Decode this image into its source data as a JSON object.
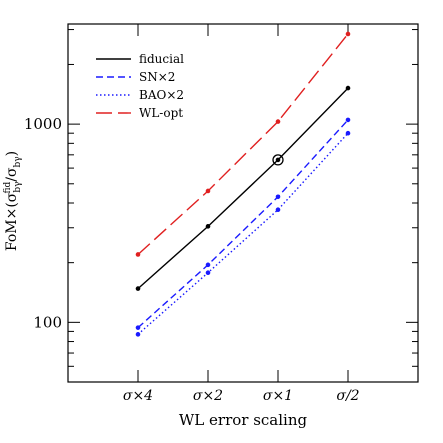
{
  "chart_data": {
    "type": "line",
    "title": "",
    "xlabel": "WL error scaling",
    "ylabel": "FoM×(σ_bγ^fid/σ_bγ)",
    "ylabel_parts": {
      "prefix": "FoM×(σ",
      "sub1": "bγ",
      "sup": "fid",
      "mid": "/σ",
      "sub2": "bγ",
      "suffix": ")"
    },
    "categories": [
      "σ×4",
      "σ×2",
      "σ×1",
      "σ/2"
    ],
    "y_scale": "log",
    "ylim": [
      50,
      3200
    ],
    "yticks": [
      {
        "value": 100,
        "label": "100"
      },
      {
        "value": 1000,
        "label": "1000"
      }
    ],
    "legend_position": "top-left",
    "series": [
      {
        "name": "fiducial",
        "color": "#000000",
        "dash": "solid",
        "values": [
          148,
          305,
          660,
          1520
        ]
      },
      {
        "name": "SN×2",
        "color": "#1a1aff",
        "dash": "dashed",
        "values": [
          94,
          195,
          430,
          1050
        ]
      },
      {
        "name": "BAO×2",
        "color": "#1a1aff",
        "dash": "dotted",
        "values": [
          87,
          178,
          370,
          900
        ]
      },
      {
        "name": "WL-opt",
        "color": "#e02020",
        "dash": "longdash",
        "values": [
          220,
          460,
          1030,
          2850
        ]
      }
    ],
    "highlight": {
      "series": "fiducial",
      "category": "σ×1",
      "value": 660
    }
  }
}
